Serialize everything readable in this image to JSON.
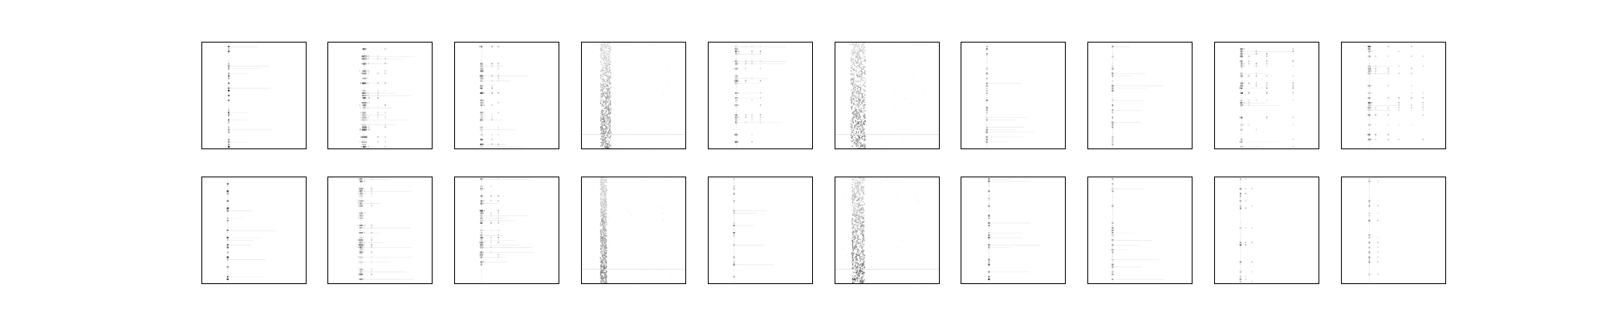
{
  "figure": {
    "rows": 2,
    "cols": 10,
    "colormap": "gray_r",
    "background": "#ffffff",
    "frame_color": "#000000"
  },
  "panels": [
    {
      "row": 0,
      "col": 0,
      "pattern": "sparse-column",
      "column_frac": 0.26,
      "spread": 1,
      "darkness": 0.85,
      "side_columns": [],
      "row_lines": true
    },
    {
      "row": 0,
      "col": 1,
      "pattern": "clustered-columns",
      "column_frac": 0.35,
      "spread": 4,
      "darkness": 0.7,
      "side_columns": [
        0.48,
        0.55
      ],
      "row_lines": true
    },
    {
      "row": 0,
      "col": 2,
      "pattern": "sparse-column",
      "column_frac": 0.26,
      "spread": 2,
      "darkness": 0.65,
      "side_columns": [
        0.36,
        0.42
      ],
      "row_lines": true
    },
    {
      "row": 0,
      "col": 3,
      "pattern": "diffuse-noise",
      "column_frac": 0.23,
      "spread": 5,
      "darkness": 0.55,
      "side_columns": [],
      "row_lines": false
    },
    {
      "row": 0,
      "col": 4,
      "pattern": "multi-column",
      "column_frac": 0.27,
      "spread": 2,
      "darkness": 0.7,
      "side_columns": [
        0.36,
        0.42,
        0.5
      ],
      "row_lines": true
    },
    {
      "row": 0,
      "col": 5,
      "pattern": "diffuse-noise",
      "column_frac": 0.22,
      "spread": 7,
      "darkness": 0.6,
      "side_columns": [],
      "row_lines": false
    },
    {
      "row": 0,
      "col": 6,
      "pattern": "sparse-column",
      "column_frac": 0.25,
      "spread": 1,
      "darkness": 0.6,
      "side_columns": [],
      "row_lines": true
    },
    {
      "row": 0,
      "col": 7,
      "pattern": "sparse-column",
      "column_frac": 0.24,
      "spread": 1,
      "darkness": 0.55,
      "side_columns": [],
      "row_lines": true
    },
    {
      "row": 0,
      "col": 8,
      "pattern": "multi-column",
      "column_frac": 0.26,
      "spread": 2,
      "darkness": 0.7,
      "side_columns": [
        0.33,
        0.4,
        0.5,
        0.75
      ],
      "row_lines": true
    },
    {
      "row": 0,
      "col": 9,
      "pattern": "multi-column",
      "column_frac": 0.27,
      "spread": 2,
      "darkness": 0.65,
      "side_columns": [
        0.33,
        0.45,
        0.55,
        0.67,
        0.78
      ],
      "row_lines": true
    },
    {
      "row": 1,
      "col": 0,
      "pattern": "sparse-column",
      "column_frac": 0.25,
      "spread": 1,
      "darkness": 0.85,
      "side_columns": [],
      "row_lines": true
    },
    {
      "row": 1,
      "col": 1,
      "pattern": "clustered-columns",
      "column_frac": 0.32,
      "spread": 3,
      "darkness": 0.6,
      "side_columns": [
        0.42
      ],
      "row_lines": true
    },
    {
      "row": 1,
      "col": 2,
      "pattern": "sparse-column",
      "column_frac": 0.26,
      "spread": 2,
      "darkness": 0.7,
      "side_columns": [
        0.35,
        0.42
      ],
      "row_lines": true
    },
    {
      "row": 1,
      "col": 3,
      "pattern": "diffuse-noise",
      "column_frac": 0.21,
      "spread": 3,
      "darkness": 0.55,
      "side_columns": [],
      "row_lines": false
    },
    {
      "row": 1,
      "col": 4,
      "pattern": "sparse-column",
      "column_frac": 0.25,
      "spread": 1,
      "darkness": 0.6,
      "side_columns": [],
      "row_lines": true
    },
    {
      "row": 1,
      "col": 5,
      "pattern": "diffuse-noise",
      "column_frac": 0.22,
      "spread": 6,
      "darkness": 0.65,
      "side_columns": [
        0.33
      ],
      "row_lines": false
    },
    {
      "row": 1,
      "col": 6,
      "pattern": "sparse-column",
      "column_frac": 0.27,
      "spread": 1,
      "darkness": 0.75,
      "side_columns": [],
      "row_lines": true
    },
    {
      "row": 1,
      "col": 7,
      "pattern": "sparse-column",
      "column_frac": 0.24,
      "spread": 1,
      "darkness": 0.5,
      "side_columns": [],
      "row_lines": true
    },
    {
      "row": 1,
      "col": 8,
      "pattern": "sparse-cluster",
      "column_frac": 0.25,
      "spread": 1,
      "darkness": 0.6,
      "side_columns": [
        0.3,
        0.36
      ],
      "row_lines": false
    },
    {
      "row": 1,
      "col": 9,
      "pattern": "sparse-cluster",
      "column_frac": 0.27,
      "spread": 1,
      "darkness": 0.5,
      "side_columns": [
        0.35
      ],
      "row_lines": false
    }
  ]
}
